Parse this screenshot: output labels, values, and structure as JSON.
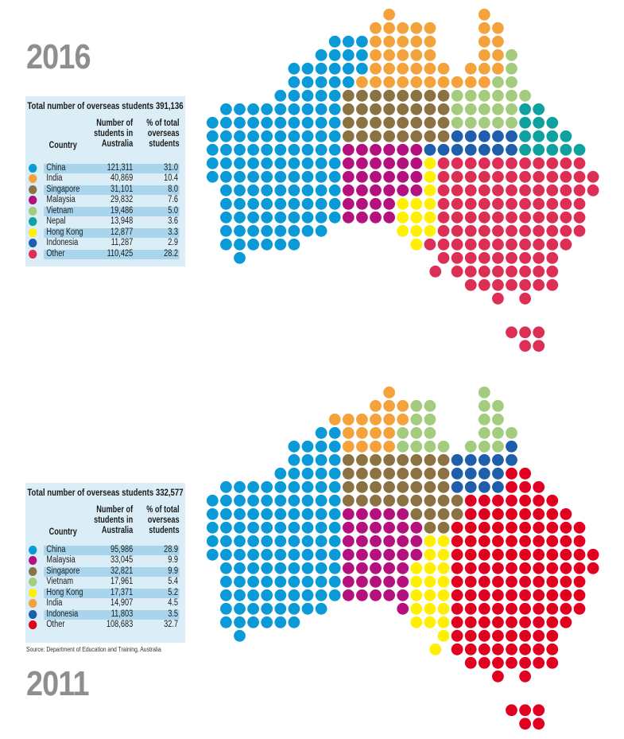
{
  "chart_data": [
    {
      "type": "dot-map",
      "year_label": "2016",
      "title": "Total number of overseas students 391,136",
      "columns": [
        "Country",
        "Number of students in Australia",
        "% of total overseas students"
      ],
      "header_lines": {
        "number": [
          "Number of",
          "students in",
          "Australia"
        ],
        "pct": [
          "% of total",
          "overseas",
          "students"
        ]
      },
      "rows": [
        {
          "country": "China",
          "students": "121,311",
          "pct": "31.0",
          "color": "#0a9ad8"
        },
        {
          "country": "India",
          "students": "40,869",
          "pct": "10.4",
          "color": "#f4a23c"
        },
        {
          "country": "Singapore",
          "students": "31,101",
          "pct": "8.0",
          "color": "#8b7242"
        },
        {
          "country": "Malaysia",
          "students": "29,832",
          "pct": "7.6",
          "color": "#b5117e"
        },
        {
          "country": "Vietnam",
          "students": "19,486",
          "pct": "5.0",
          "color": "#a3cc7f"
        },
        {
          "country": "Nepal",
          "students": "13,948",
          "pct": "3.6",
          "color": "#0ea19f"
        },
        {
          "country": "Hong Kong",
          "students": "12,877",
          "pct": "3.3",
          "color": "#fff000"
        },
        {
          "country": "Indonesia",
          "students": "11,287",
          "pct": "2.9",
          "color": "#1f5eab"
        },
        {
          "country": "Other",
          "students": "110,425",
          "pct": "28.2",
          "color": "#dd2f55"
        }
      ]
    },
    {
      "type": "dot-map",
      "year_label": "2011",
      "title": "Total number of overseas students 332,577",
      "columns": [
        "Country",
        "Number of students in Australia",
        "% of total overseas students"
      ],
      "header_lines": {
        "number": [
          "Number of",
          "students in",
          "Australia"
        ],
        "pct": [
          "% of total",
          "overseas",
          "students"
        ]
      },
      "rows": [
        {
          "country": "China",
          "students": "95,986",
          "pct": "28.9",
          "color": "#0a9ad8"
        },
        {
          "country": "Malaysia",
          "students": "33,045",
          "pct": "9.9",
          "color": "#b5117e"
        },
        {
          "country": "Singapore",
          "students": "32,821",
          "pct": "9.9",
          "color": "#8b7242"
        },
        {
          "country": "Vietnam",
          "students": "17,961",
          "pct": "5.4",
          "color": "#a3cc7f"
        },
        {
          "country": "Hong Kong",
          "students": "17,371",
          "pct": "5.2",
          "color": "#fff000"
        },
        {
          "country": "India",
          "students": "14,907",
          "pct": "4.5",
          "color": "#f4a23c"
        },
        {
          "country": "Indonesia",
          "students": "11,803",
          "pct": "3.5",
          "color": "#1f5eab"
        },
        {
          "country": "Other",
          "students": "108,683",
          "pct": "32.7",
          "color": "#e1001f"
        }
      ]
    }
  ],
  "source": "Source: Department of Education and Training, Australia"
}
